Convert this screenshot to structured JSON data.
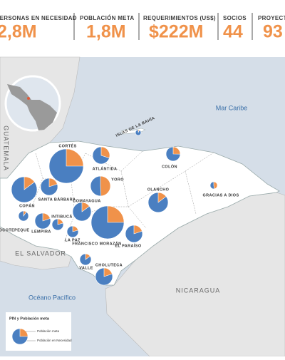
{
  "header": {
    "stats": [
      {
        "label": "PERSONAS EN NECESIDAD",
        "value": "2,8M"
      },
      {
        "label": "POBLACIÓN META",
        "value": "1,8M"
      },
      {
        "label": "REQUERIMIENTOS (US$)",
        "value": "$222M"
      },
      {
        "label": "SOCIOS",
        "value": "44"
      },
      {
        "label": "PROYECTOS",
        "value": "93"
      }
    ]
  },
  "map": {
    "labels": {
      "sea_north": "Mar Caribe",
      "sea_south": "Océano Pacífico",
      "guatemala": "GUATEMALA",
      "el_salvador": "EL SALVADOR",
      "nicaragua": "NICARAGUA"
    },
    "pies": [
      {
        "name": "CORTÉS",
        "pin": 480,
        "meta": 120
      },
      {
        "name": "ATLÁNTIDA",
        "pin": 120,
        "meta": 36
      },
      {
        "name": "ISLAS DE LA BAHÍA",
        "pin": 13,
        "meta": 1
      },
      {
        "name": "COLÓN",
        "pin": 83,
        "meta": 21
      },
      {
        "name": "YORO",
        "pin": 163,
        "meta": 80
      },
      {
        "name": "OLANCHO",
        "pin": 163,
        "meta": 24
      },
      {
        "name": "GRACIAS A DIOS",
        "pin": 21,
        "meta": 10
      },
      {
        "name": "SANTA BÁRBARA",
        "pin": 120,
        "meta": 24
      },
      {
        "name": "COPÁN",
        "pin": 270,
        "meta": 40
      },
      {
        "name": "COMAYAGUA",
        "pin": 141,
        "meta": 21
      },
      {
        "name": "INTIBUCÁ",
        "pin": 53,
        "meta": 11
      },
      {
        "name": "OCOTEPEQUE",
        "pin": 41,
        "meta": 4
      },
      {
        "name": "LEMPIRA",
        "pin": 101,
        "meta": 20
      },
      {
        "name": "LA PAZ",
        "pin": 53,
        "meta": 11
      },
      {
        "name": "FRANCISCO MORAZÁN",
        "pin": 441,
        "meta": 110
      },
      {
        "name": "EL PARAÍSO",
        "pin": 120,
        "meta": 24
      },
      {
        "name": "VALLE",
        "pin": 53,
        "meta": 8
      },
      {
        "name": "CHOLUTECA",
        "pin": 120,
        "meta": 24
      }
    ]
  },
  "legend": {
    "title": "PIN y Población meta",
    "meta": "Población meta",
    "pin": "Población en Necesidad"
  }
}
